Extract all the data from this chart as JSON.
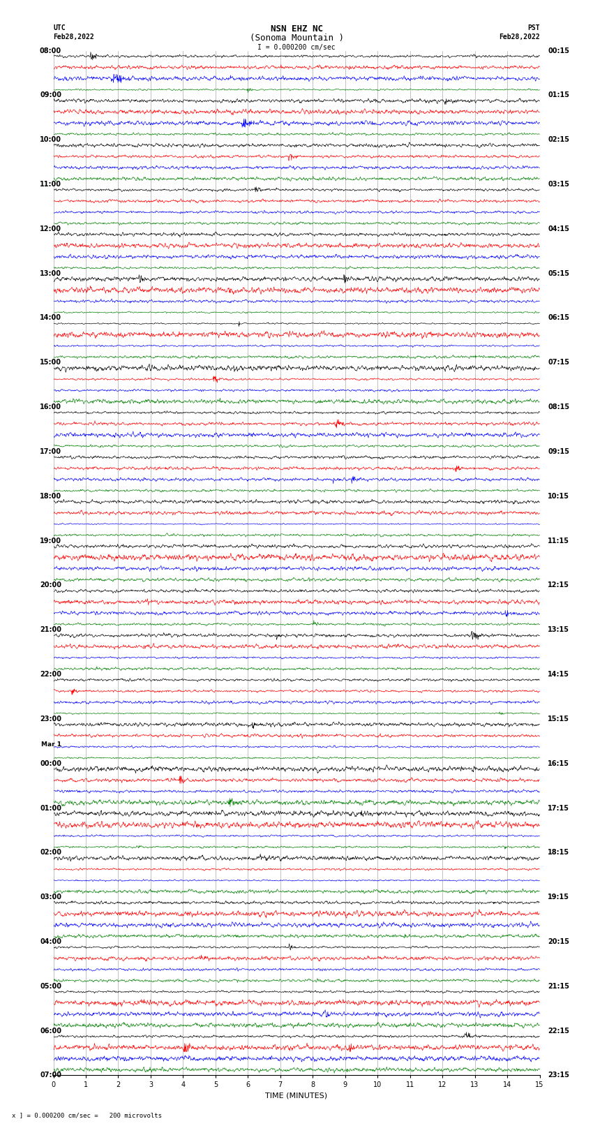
{
  "title_line1": "NSN EHZ NC",
  "title_line2": "(Sonoma Mountain )",
  "scale_label": "I = 0.000200 cm/sec",
  "left_label_top": "UTC",
  "left_label_date": "Feb28,2022",
  "right_label_top": "PST",
  "right_label_date": "Feb28,2022",
  "bottom_label": "TIME (MINUTES)",
  "footnote": "x ] = 0.000200 cm/sec =   200 microvolts",
  "colors": [
    "black",
    "red",
    "blue",
    "green"
  ],
  "n_rows": 92,
  "n_minutes": 15,
  "samples_per_minute": 100,
  "background_color": "white",
  "trace_amplitude": 0.38,
  "grid_color": "#888888",
  "grid_linewidth": 0.5,
  "trace_linewidth": 0.45,
  "xlabel_fontsize": 8,
  "title_fontsize": 9,
  "tick_fontsize": 7,
  "utc_times_display": [
    [
      "08:00",
      0
    ],
    [
      "09:00",
      4
    ],
    [
      "10:00",
      8
    ],
    [
      "11:00",
      12
    ],
    [
      "12:00",
      16
    ],
    [
      "13:00",
      20
    ],
    [
      "14:00",
      24
    ],
    [
      "15:00",
      28
    ],
    [
      "16:00",
      32
    ],
    [
      "17:00",
      36
    ],
    [
      "18:00",
      40
    ],
    [
      "19:00",
      44
    ],
    [
      "20:00",
      48
    ],
    [
      "21:00",
      52
    ],
    [
      "22:00",
      56
    ],
    [
      "23:00",
      60
    ],
    [
      "Mar 1",
      63
    ],
    [
      "00:00",
      64
    ],
    [
      "01:00",
      68
    ],
    [
      "02:00",
      72
    ],
    [
      "03:00",
      76
    ],
    [
      "04:00",
      80
    ],
    [
      "05:00",
      84
    ],
    [
      "06:00",
      88
    ],
    [
      "07:00",
      92
    ]
  ],
  "pst_times_display": [
    [
      "00:15",
      0
    ],
    [
      "01:15",
      4
    ],
    [
      "02:15",
      8
    ],
    [
      "03:15",
      12
    ],
    [
      "04:15",
      16
    ],
    [
      "05:15",
      20
    ],
    [
      "06:15",
      24
    ],
    [
      "07:15",
      28
    ],
    [
      "08:15",
      32
    ],
    [
      "09:15",
      36
    ],
    [
      "10:15",
      40
    ],
    [
      "11:15",
      44
    ],
    [
      "12:15",
      48
    ],
    [
      "13:15",
      52
    ],
    [
      "14:15",
      56
    ],
    [
      "15:15",
      60
    ],
    [
      "16:15",
      64
    ],
    [
      "17:15",
      68
    ],
    [
      "18:15",
      72
    ],
    [
      "19:15",
      76
    ],
    [
      "20:15",
      80
    ],
    [
      "21:15",
      84
    ],
    [
      "22:15",
      88
    ],
    [
      "23:15",
      92
    ]
  ]
}
